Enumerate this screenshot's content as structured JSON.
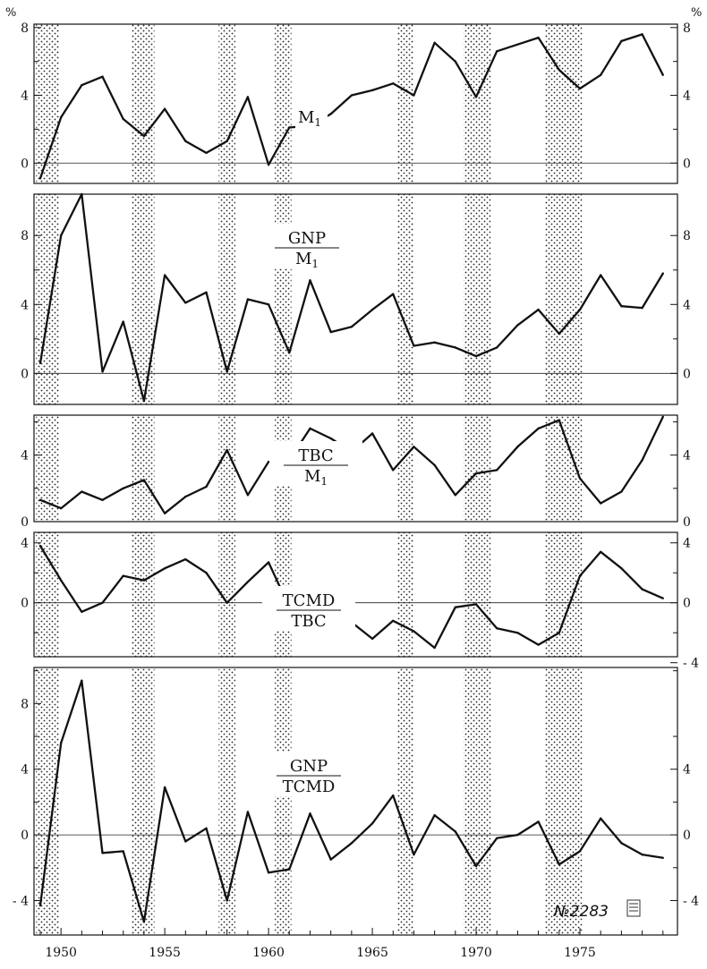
{
  "figure": {
    "unit_left": "%",
    "unit_right": "%",
    "figure_number": "№2283"
  },
  "chart_data": [
    {
      "type": "line",
      "label": {
        "numerator": "M",
        "numerator_sub": "1",
        "denominator": "",
        "denominator_sub": ""
      },
      "x": [
        1949,
        1950,
        1951,
        1952,
        1953,
        1954,
        1955,
        1956,
        1957,
        1958,
        1959,
        1960,
        1961,
        1962,
        1963,
        1964,
        1965,
        1966,
        1967,
        1968,
        1969,
        1970,
        1971,
        1972,
        1973,
        1974,
        1975,
        1976,
        1977,
        1978,
        1979
      ],
      "values": [
        -0.9,
        2.7,
        4.6,
        5.1,
        2.6,
        1.6,
        3.2,
        1.3,
        0.6,
        1.3,
        3.9,
        -0.1,
        2.1,
        2.2,
        2.9,
        4.0,
        4.3,
        4.7,
        4.0,
        7.1,
        6.0,
        3.9,
        6.6,
        7.0,
        7.4,
        5.5,
        4.4,
        5.2,
        7.2,
        7.6,
        5.2
      ],
      "ylim": [
        -1.2,
        8.2
      ],
      "left_ticks": [
        {
          "v": 8,
          "t": "8"
        },
        {
          "v": 4,
          "t": "4"
        },
        {
          "v": 0,
          "t": "0"
        }
      ],
      "right_ticks": [
        {
          "v": 8,
          "t": "8"
        },
        {
          "v": 4,
          "t": "4"
        },
        {
          "v": 0,
          "t": "0"
        }
      ],
      "minor_ticks": [
        2,
        6
      ],
      "zero_line": true
    },
    {
      "type": "line",
      "label": {
        "numerator": "GNP",
        "numerator_sub": "",
        "denominator": "M",
        "denominator_sub": "1"
      },
      "x": [
        1949,
        1950,
        1951,
        1952,
        1953,
        1954,
        1955,
        1956,
        1957,
        1958,
        1959,
        1960,
        1961,
        1962,
        1963,
        1964,
        1965,
        1966,
        1967,
        1968,
        1969,
        1970,
        1971,
        1972,
        1973,
        1974,
        1975,
        1976,
        1977,
        1978,
        1979
      ],
      "values": [
        0.6,
        8.0,
        10.4,
        0.1,
        3.0,
        -1.6,
        5.7,
        4.1,
        4.7,
        0.1,
        4.3,
        4.0,
        1.2,
        5.4,
        2.4,
        2.7,
        3.7,
        4.6,
        1.6,
        1.8,
        1.5,
        1.0,
        1.5,
        2.8,
        3.7,
        2.3,
        3.7,
        5.7,
        3.9,
        3.8,
        5.8
      ],
      "ylim": [
        -1.8,
        10.4
      ],
      "left_ticks": [
        {
          "v": 8,
          "t": "8"
        },
        {
          "v": 4,
          "t": "4"
        },
        {
          "v": 0,
          "t": "0"
        }
      ],
      "right_ticks": [
        {
          "v": 8,
          "t": "8"
        },
        {
          "v": 4,
          "t": "4"
        },
        {
          "v": 0,
          "t": "0"
        }
      ],
      "minor_ticks": [
        2,
        6
      ],
      "zero_line": true
    },
    {
      "type": "line",
      "label": {
        "numerator": "TBC",
        "numerator_sub": "",
        "denominator": "M",
        "denominator_sub": "1"
      },
      "x": [
        1949,
        1950,
        1951,
        1952,
        1953,
        1954,
        1955,
        1956,
        1957,
        1958,
        1959,
        1960,
        1961,
        1962,
        1963,
        1964,
        1965,
        1966,
        1967,
        1968,
        1969,
        1970,
        1971,
        1972,
        1973,
        1974,
        1975,
        1976,
        1977,
        1978,
        1979
      ],
      "values": [
        1.3,
        0.8,
        1.8,
        1.3,
        2.0,
        2.5,
        0.5,
        1.5,
        2.1,
        4.3,
        1.6,
        3.6,
        3.7,
        5.6,
        5.0,
        4.2,
        5.3,
        3.1,
        4.5,
        3.4,
        1.6,
        2.9,
        3.1,
        4.5,
        5.6,
        6.1,
        2.6,
        1.1,
        1.8,
        3.7,
        6.3
      ],
      "ylim": [
        0,
        6.4
      ],
      "left_ticks": [
        {
          "v": 4,
          "t": "4"
        },
        {
          "v": 0,
          "t": "0"
        }
      ],
      "right_ticks": [
        {
          "v": 4,
          "t": "4"
        },
        {
          "v": 0,
          "t": "0"
        }
      ],
      "minor_ticks": [
        2,
        6
      ],
      "zero_line": false
    },
    {
      "type": "line",
      "label": {
        "numerator": "TCMD",
        "numerator_sub": "",
        "denominator": "TBC",
        "denominator_sub": ""
      },
      "x": [
        1949,
        1950,
        1951,
        1952,
        1953,
        1954,
        1955,
        1956,
        1957,
        1958,
        1959,
        1960,
        1961,
        1962,
        1963,
        1964,
        1965,
        1966,
        1967,
        1968,
        1969,
        1970,
        1971,
        1972,
        1973,
        1974,
        1975,
        1976,
        1977,
        1978,
        1979
      ],
      "values": [
        3.8,
        1.5,
        -0.6,
        0.0,
        1.8,
        1.5,
        2.3,
        2.9,
        2.0,
        0.0,
        1.4,
        2.7,
        -0.3,
        -1.5,
        -1.1,
        -1.3,
        -2.4,
        -1.2,
        -1.9,
        -3.0,
        -0.3,
        -0.1,
        -1.7,
        -2.0,
        -2.8,
        -2.0,
        1.8,
        3.4,
        2.3,
        0.9,
        0.3
      ],
      "ylim": [
        -3.6,
        4.7
      ],
      "left_ticks": [
        {
          "v": 4,
          "t": "4"
        },
        {
          "v": 0,
          "t": "0"
        }
      ],
      "right_ticks": [
        {
          "v": 4,
          "t": "4"
        },
        {
          "v": 0,
          "t": "0"
        },
        {
          "v": -4,
          "t": "- 4"
        }
      ],
      "minor_ticks": [
        2,
        -2
      ],
      "zero_line": true
    },
    {
      "type": "line",
      "label": {
        "numerator": "GNP",
        "numerator_sub": "",
        "denominator": "TCMD",
        "denominator_sub": ""
      },
      "x": [
        1949,
        1950,
        1951,
        1952,
        1953,
        1954,
        1955,
        1956,
        1957,
        1958,
        1959,
        1960,
        1961,
        1962,
        1963,
        1964,
        1965,
        1966,
        1967,
        1968,
        1969,
        1970,
        1971,
        1972,
        1973,
        1974,
        1975,
        1976,
        1977,
        1978,
        1979
      ],
      "values": [
        -4.3,
        5.6,
        9.4,
        -1.1,
        -1.0,
        -5.3,
        2.9,
        -0.4,
        0.4,
        -4.0,
        1.4,
        -2.3,
        -2.1,
        1.3,
        -1.5,
        -0.5,
        0.7,
        2.4,
        -1.2,
        1.2,
        0.2,
        -1.9,
        -0.2,
        0.0,
        0.8,
        -1.8,
        -1.0,
        1.0,
        -0.5,
        -1.2,
        -1.4
      ],
      "ylim": [
        -6.1,
        10.2
      ],
      "left_ticks": [
        {
          "v": 8,
          "t": "8"
        },
        {
          "v": 4,
          "t": "4"
        },
        {
          "v": 0,
          "t": "0"
        },
        {
          "v": -4,
          "t": "- 4"
        }
      ],
      "right_ticks": [
        {
          "v": 4,
          "t": "4"
        },
        {
          "v": 0,
          "t": "0"
        },
        {
          "v": -4,
          "t": "- 4"
        }
      ],
      "minor_ticks": [
        2,
        6,
        -2,
        10
      ],
      "zero_line": true
    }
  ],
  "recession_bands": [
    {
      "start": 1948.8,
      "end": 1949.9
    },
    {
      "start": 1953.4,
      "end": 1954.5
    },
    {
      "start": 1957.6,
      "end": 1958.4
    },
    {
      "start": 1960.3,
      "end": 1961.1
    },
    {
      "start": 1966.2,
      "end": 1967.0
    },
    {
      "start": 1969.4,
      "end": 1970.7
    },
    {
      "start": 1973.3,
      "end": 1975.1
    }
  ],
  "x_axis": {
    "xlim": [
      1948.7,
      1979.7
    ],
    "labels": [
      "1950",
      "1955",
      "1960",
      "1965",
      "1970",
      "1975"
    ],
    "label_years": [
      1950,
      1955,
      1960,
      1965,
      1970,
      1975
    ]
  }
}
